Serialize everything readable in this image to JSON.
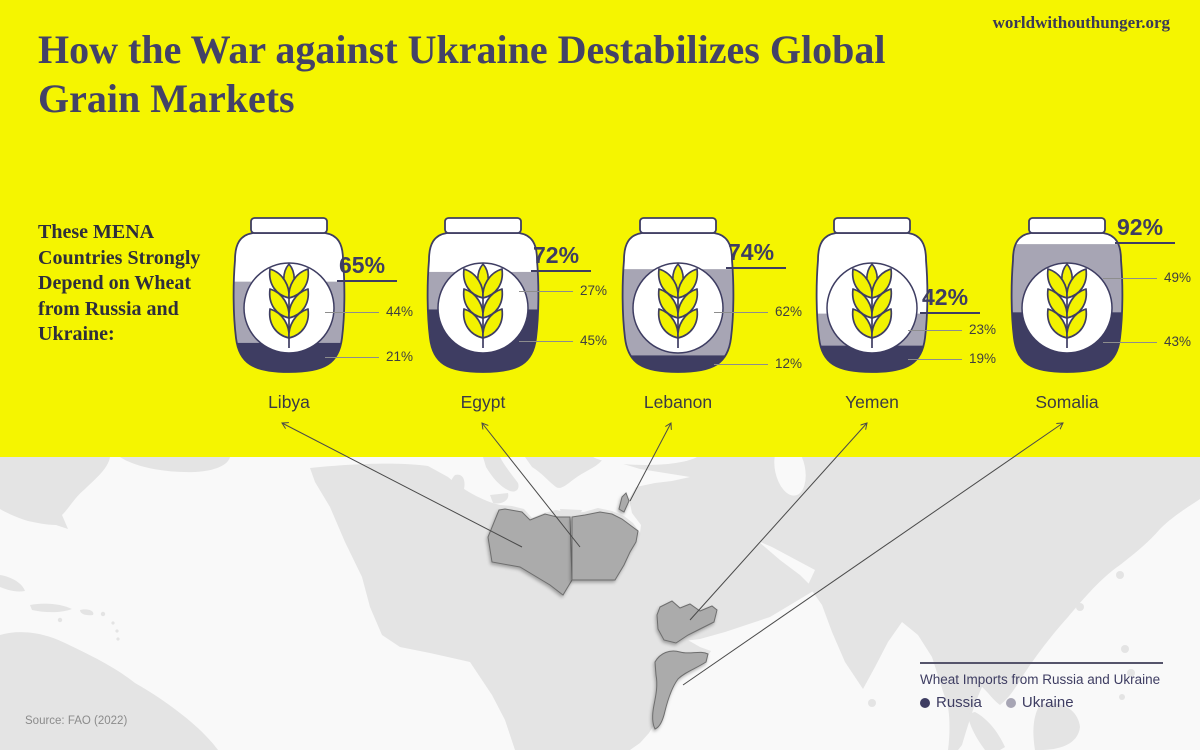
{
  "brand": "worldwithouthunger.org",
  "title": "How the War against Ukraine Destabilizes Global Grain Markets",
  "intro": "These MENA Countries Strongly Depend on Wheat from Russia and Ukraine:",
  "source": "Source: FAO (2022)",
  "legend": {
    "title": "Wheat Imports from Russia and Ukraine",
    "items": [
      {
        "label": "Russia",
        "color": "#3e3d62"
      },
      {
        "label": "Ukraine",
        "color": "#a7a5b4"
      }
    ]
  },
  "colors": {
    "background_yellow": "#f5f500",
    "russia_navy": "#3e3d62",
    "ukraine_gray": "#a7a5b4",
    "wheat_yellow": "#f2f200",
    "title_ink": "#434267",
    "map_land": "#e4e4e4",
    "map_sea": "#f9f9f9",
    "map_highlight": "#ababab"
  },
  "chart_data": {
    "type": "bar",
    "subtype": "stacked-pictorial-grain-jars",
    "title": "Wheat Imports from Russia and Ukraine",
    "unit": "%",
    "ylim": [
      0,
      100
    ],
    "categories": [
      "Libya",
      "Egypt",
      "Lebanon",
      "Yemen",
      "Somalia"
    ],
    "series": [
      {
        "name": "Russia",
        "values": [
          21,
          45,
          12,
          19,
          43
        ]
      },
      {
        "name": "Ukraine",
        "values": [
          44,
          27,
          62,
          23,
          49
        ]
      }
    ],
    "totals": [
      65,
      72,
      74,
      42,
      92
    ],
    "legend_position": "bottom-right"
  }
}
